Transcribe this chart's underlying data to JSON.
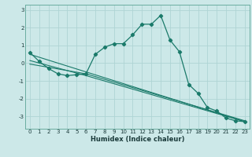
{
  "xlabel": "Humidex (Indice chaleur)",
  "ylabel": "",
  "bg_color": "#cce8e8",
  "grid_color": "#afd4d4",
  "line_color": "#1a7a6a",
  "xlim": [
    -0.5,
    23.5
  ],
  "ylim": [
    -3.7,
    3.3
  ],
  "x_ticks": [
    0,
    1,
    2,
    3,
    4,
    5,
    6,
    7,
    8,
    9,
    10,
    11,
    12,
    13,
    14,
    15,
    16,
    17,
    18,
    19,
    20,
    21,
    22,
    23
  ],
  "y_ticks": [
    -3,
    -2,
    -1,
    0,
    1,
    2,
    3
  ],
  "line1_x": [
    0,
    1,
    2,
    3,
    4,
    5,
    6,
    7,
    8,
    9,
    10,
    11,
    12,
    13,
    14,
    15,
    16,
    17,
    18,
    19,
    20,
    21,
    22,
    23
  ],
  "line1_y": [
    0.6,
    0.1,
    -0.3,
    -0.6,
    -0.7,
    -0.65,
    -0.6,
    0.5,
    0.9,
    1.1,
    1.1,
    1.6,
    2.2,
    2.2,
    2.7,
    1.3,
    0.65,
    -1.2,
    -1.7,
    -2.5,
    -2.7,
    -3.1,
    -3.25,
    -3.3
  ],
  "line2_x": [
    0,
    23
  ],
  "line2_y": [
    0.5,
    -3.3
  ],
  "line3_x": [
    0,
    6,
    23
  ],
  "line3_y": [
    -0.05,
    -0.6,
    -3.25
  ],
  "line4_x": [
    0,
    6,
    23
  ],
  "line4_y": [
    0.15,
    -0.7,
    -3.3
  ]
}
